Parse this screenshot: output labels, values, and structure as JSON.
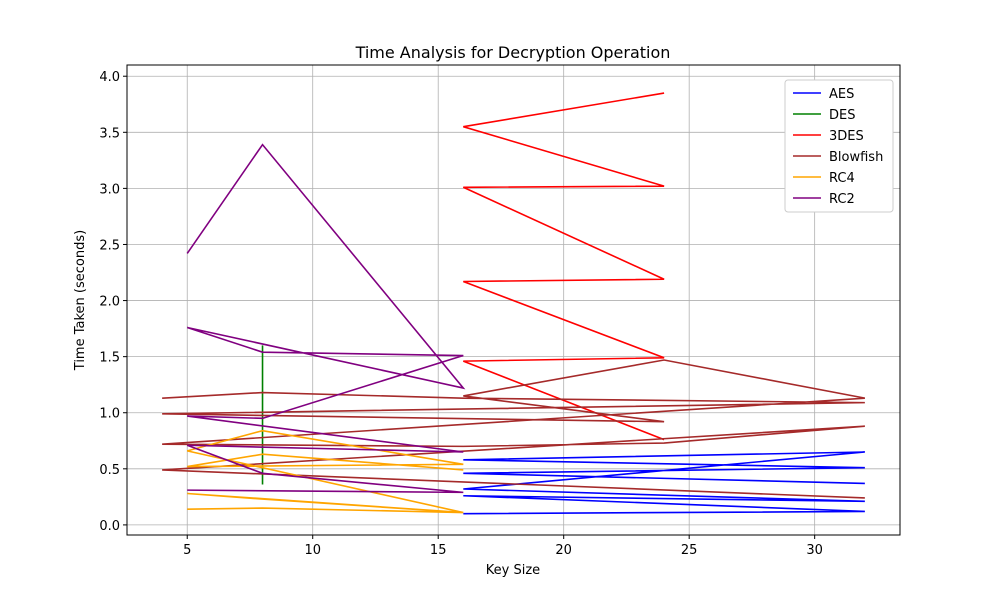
{
  "chart_data": {
    "type": "line",
    "title": "Time Analysis for Decryption Operation",
    "x_label": "Key Size",
    "y_label": "Time Taken (seconds)",
    "xlim": [
      2.6,
      33.4
    ],
    "ylim": [
      -0.09,
      4.1
    ],
    "xticks": [
      5,
      10,
      15,
      20,
      25,
      30
    ],
    "yticks": [
      {
        "value": 0,
        "label": "0.0"
      },
      {
        "value": 0.5,
        "label": "0.5"
      },
      {
        "value": 1,
        "label": "1.0"
      },
      {
        "value": 1.5,
        "label": "1.5"
      },
      {
        "value": 2,
        "label": "2.0"
      },
      {
        "value": 2.5,
        "label": "2.5"
      },
      {
        "value": 3,
        "label": "3.0"
      },
      {
        "value": 3.5,
        "label": "3.5"
      },
      {
        "value": 4,
        "label": "4.0"
      }
    ],
    "grid": true,
    "legend": "upper right",
    "series": [
      {
        "name": "AES",
        "color": "#0000ff",
        "x": [
          16,
          32,
          16,
          32,
          16,
          32,
          16,
          32,
          16,
          32
        ],
        "values": [
          0.1,
          0.12,
          0.26,
          0.21,
          0.32,
          0.65,
          0.58,
          0.51,
          0.46,
          0.37
        ]
      },
      {
        "name": "DES",
        "color": "#008000",
        "x": [
          8,
          8,
          8,
          8
        ],
        "values": [
          0.5,
          1.6,
          0.36,
          0.9
        ]
      },
      {
        "name": "3DES",
        "color": "#ff0000",
        "x": [
          24,
          16,
          24,
          16,
          24,
          16,
          24,
          16,
          24
        ],
        "values": [
          3.85,
          3.55,
          3.02,
          3.01,
          2.19,
          2.17,
          1.49,
          1.46,
          0.76
        ]
      },
      {
        "name": "Blowfish",
        "color": "#a52a2a",
        "x": [
          4,
          8,
          16,
          32,
          4,
          24,
          16,
          24,
          32,
          4,
          16,
          24,
          32,
          4,
          32
        ],
        "values": [
          1.13,
          1.18,
          1.13,
          1.09,
          0.99,
          0.92,
          1.15,
          1.47,
          1.13,
          0.72,
          0.7,
          0.73,
          0.88,
          0.49,
          0.24
        ]
      },
      {
        "name": "RC4",
        "color": "#ffa500",
        "x": [
          5,
          8,
          16,
          5,
          8,
          16,
          5,
          8,
          16,
          5,
          8,
          16
        ],
        "values": [
          0.14,
          0.15,
          0.11,
          0.28,
          0.23,
          0.11,
          0.66,
          0.84,
          0.54,
          0.52,
          0.63,
          0.49
        ]
      },
      {
        "name": "RC2",
        "color": "#800080",
        "x": [
          5,
          8,
          16,
          5,
          8,
          16,
          8,
          5,
          16,
          5,
          8,
          16,
          5
        ],
        "values": [
          2.42,
          3.39,
          1.22,
          1.76,
          1.54,
          1.51,
          0.95,
          0.97,
          0.65,
          0.71,
          0.46,
          0.29,
          0.31
        ]
      }
    ]
  }
}
